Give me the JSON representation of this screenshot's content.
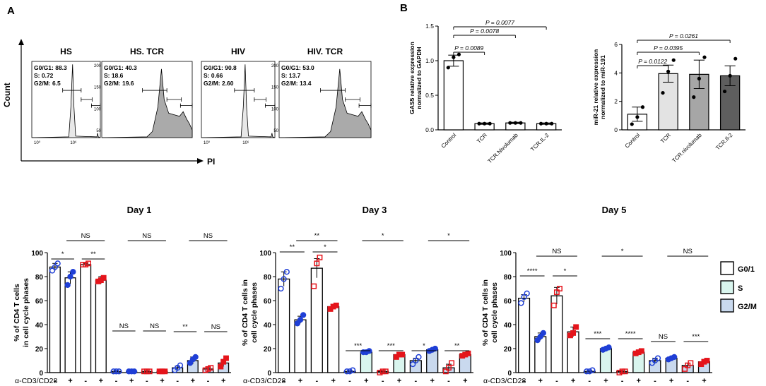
{
  "panel_labels": {
    "a": "A",
    "b": "B"
  },
  "flow": {
    "y_axis": "Count",
    "x_axis": "PI",
    "plots": [
      {
        "title": "HS",
        "stats": [
          "G0/G1: 88.3",
          "S: 0.72",
          "G2/M: 6.5"
        ],
        "tick_left": "10⁰",
        "tick_right": "10⁶",
        "shape": "narrow"
      },
      {
        "title": "HS. TCR",
        "stats": [
          "G0/G1: 40.3",
          "S: 18.6",
          "G2/M: 19.6"
        ],
        "tick_labels": [
          "200",
          "150",
          "100",
          "50"
        ],
        "shape": "broad"
      },
      {
        "title": "HIV",
        "stats": [
          "G0/G1: 90.8",
          "S: 0.66",
          "G2/M: 2.60"
        ],
        "tick_left": "10⁰",
        "tick_right": "10⁶",
        "shape": "narrow"
      },
      {
        "title": "HIV. TCR",
        "stats": [
          "G0/G1: 53.0",
          "S: 13.7",
          "G2/M: 13.4"
        ],
        "tick_labels": [
          "200",
          "150",
          "100",
          "50"
        ],
        "shape": "broad"
      }
    ]
  },
  "chart_data": [
    {
      "type": "bar",
      "id": "gas5",
      "ylabel": "GAS5 relative expression normalized to GAPDH",
      "ylabel_lines": [
        "GAS5 relative expression",
        "normalized to GAPDH"
      ],
      "ylim": [
        0,
        1.5
      ],
      "yticks": [
        "0.0",
        "0.5",
        "1.0",
        "1.5"
      ],
      "categories": [
        "Control",
        "TCR",
        "TCR.Nivolumab",
        "TCR.IL-2"
      ],
      "values": [
        1.0,
        0.09,
        0.1,
        0.09
      ],
      "errors": [
        0.08,
        0.01,
        0.01,
        0.01
      ],
      "points": [
        [
          0.9,
          1.05,
          1.09
        ],
        [
          0.09,
          0.09,
          0.09
        ],
        [
          0.1,
          0.1,
          0.1
        ],
        [
          0.09,
          0.09,
          0.09
        ]
      ],
      "fills": [
        "#ffffff",
        "#ffffff",
        "#ffffff",
        "#ffffff"
      ],
      "comparisons": [
        {
          "from": 0,
          "to": 1,
          "label": "P = 0.0089"
        },
        {
          "from": 0,
          "to": 2,
          "label": "P = 0.0078"
        },
        {
          "from": 0,
          "to": 3,
          "label": "P = 0.0077"
        }
      ]
    },
    {
      "type": "bar",
      "id": "mir21",
      "ylabel": "miR-21 relative expression normalized to miR-191",
      "ylabel_lines": [
        "miR-21 relative expression",
        "normalized to miR-191"
      ],
      "ylim": [
        0,
        6
      ],
      "yticks": [
        "0",
        "2",
        "4",
        "6"
      ],
      "categories": [
        "Control",
        "TCR",
        "TCR.nivolumab",
        "TCR.Il-2"
      ],
      "values": [
        1.1,
        3.95,
        3.9,
        3.8
      ],
      "errors": [
        0.5,
        0.6,
        1.0,
        0.7
      ],
      "points": [
        [
          0.4,
          0.9,
          1.6
        ],
        [
          2.6,
          4.1,
          4.9
        ],
        [
          2.3,
          3.6,
          5.1
        ],
        [
          2.7,
          3.8,
          5.0
        ]
      ],
      "fills": [
        "#ffffff",
        "#e3e3e3",
        "#a6a6a6",
        "#5e5e5e"
      ],
      "comparisons": [
        {
          "from": 0,
          "to": 1,
          "label": "P = 0.0122"
        },
        {
          "from": 0,
          "to": 2,
          "label": "P = 0.0395"
        },
        {
          "from": 0,
          "to": 3,
          "label": "P = 0.0261"
        }
      ]
    },
    {
      "type": "bar",
      "id": "day1",
      "title": "Day 1",
      "ylabel_lines": [
        "% of CD4 T cells",
        "in  cell cycle phases"
      ],
      "ylim": [
        0,
        100
      ],
      "yticks": [
        "0",
        "20",
        "40",
        "60",
        "80",
        "100"
      ],
      "xlabel": "α-CD3/CD28",
      "signs": [
        "-",
        "+",
        "-",
        "+",
        "-",
        "+",
        "-",
        "+",
        "-",
        "+",
        "-",
        "+"
      ],
      "phases": [
        "G0/1",
        "G0/1",
        "G0/1",
        "G0/1",
        "S",
        "S",
        "S",
        "S",
        "G2/M",
        "G2/M",
        "G2/M",
        "G2/M"
      ],
      "groups": [
        "HS",
        "HS",
        "HIV",
        "HIV",
        "HS",
        "HS",
        "HIV",
        "HIV",
        "HS",
        "HS",
        "HIV",
        "HIV"
      ],
      "values": [
        88,
        79,
        90,
        77,
        1,
        1,
        1,
        1,
        4,
        10,
        3,
        8
      ],
      "errors": [
        3,
        5,
        1,
        3,
        0.5,
        0.5,
        0.5,
        0.5,
        1.5,
        3,
        1,
        3
      ],
      "points": [
        [
          85,
          88,
          91
        ],
        [
          73,
          80,
          84
        ],
        [
          90,
          90,
          91
        ],
        [
          76,
          77,
          79
        ],
        [
          1,
          1,
          1
        ],
        [
          1,
          1,
          1
        ],
        [
          1,
          1,
          1
        ],
        [
          1,
          1,
          1
        ],
        [
          2,
          4,
          6
        ],
        [
          8,
          11,
          13
        ],
        [
          2,
          3,
          4
        ],
        [
          5,
          9,
          12
        ]
      ],
      "sig_low": [
        {
          "from": 0,
          "to": 1,
          "label": "*"
        },
        {
          "from": 2,
          "to": 3,
          "label": "**"
        },
        {
          "from": 4,
          "to": 5,
          "label": "NS"
        },
        {
          "from": 6,
          "to": 7,
          "label": "NS"
        },
        {
          "from": 8,
          "to": 9,
          "label": "**"
        },
        {
          "from": 10,
          "to": 11,
          "label": "NS"
        }
      ],
      "sig_high": [
        {
          "from": 1,
          "to": 3,
          "label": "NS"
        },
        {
          "from": 5,
          "to": 7,
          "label": "NS"
        },
        {
          "from": 9,
          "to": 11,
          "label": "NS"
        }
      ]
    },
    {
      "type": "bar",
      "id": "day3",
      "title": "Day 3",
      "ylabel_lines": [
        "% of CD4 T cells in",
        "cell cycle phases"
      ],
      "ylim": [
        0,
        100
      ],
      "yticks": [
        "0",
        "20",
        "40",
        "60",
        "80",
        "100"
      ],
      "xlabel": "α-CD3/CD28",
      "signs": [
        "-",
        "+",
        "-",
        "+",
        "-",
        "+",
        "-",
        "+",
        "-",
        "+",
        "-",
        "+"
      ],
      "phases": [
        "G0/1",
        "G0/1",
        "G0/1",
        "G0/1",
        "S",
        "S",
        "S",
        "S",
        "G2/M",
        "G2/M",
        "G2/M",
        "G2/M"
      ],
      "groups": [
        "HS",
        "HS",
        "HIV",
        "HIV",
        "HS",
        "HS",
        "HIV",
        "HIV",
        "HS",
        "HS",
        "HIV",
        "HIV"
      ],
      "values": [
        78,
        44,
        87,
        55,
        1,
        17,
        1,
        15,
        10,
        19,
        4,
        15
      ],
      "errors": [
        6,
        3,
        8,
        2,
        0.5,
        1,
        0.5,
        2,
        2,
        1,
        3,
        2
      ],
      "points": [
        [
          70,
          78,
          84
        ],
        [
          41,
          44,
          48
        ],
        [
          72,
          91,
          96
        ],
        [
          53,
          55,
          56
        ],
        [
          1,
          1,
          2
        ],
        [
          17,
          17,
          18
        ],
        [
          0,
          1,
          1
        ],
        [
          13,
          15,
          15
        ],
        [
          7,
          10,
          13
        ],
        [
          18,
          19,
          20
        ],
        [
          1,
          4,
          8
        ],
        [
          14,
          15,
          16
        ]
      ],
      "sig_low": [
        {
          "from": 0,
          "to": 1,
          "label": "**"
        },
        {
          "from": 2,
          "to": 3,
          "label": "*"
        },
        {
          "from": 4,
          "to": 5,
          "label": "***"
        },
        {
          "from": 6,
          "to": 7,
          "label": "***"
        },
        {
          "from": 8,
          "to": 9,
          "label": "*"
        },
        {
          "from": 10,
          "to": 11,
          "label": "**"
        }
      ],
      "sig_high": [
        {
          "from": 1,
          "to": 3,
          "label": "**"
        },
        {
          "from": 5,
          "to": 7,
          "label": "*"
        },
        {
          "from": 9,
          "to": 11,
          "label": "*"
        }
      ]
    },
    {
      "type": "bar",
      "id": "day5",
      "title": "Day 5",
      "ylabel_lines": [
        "% of CD4 T cells in",
        "cell cycle phases"
      ],
      "ylim": [
        0,
        100
      ],
      "yticks": [
        "0",
        "20",
        "40",
        "60",
        "80",
        "100"
      ],
      "xlabel": "α-CD3/CD28",
      "signs": [
        "-",
        "+",
        "-",
        "+",
        "-",
        "+",
        "-",
        "+",
        "-",
        "+",
        "-",
        "+"
      ],
      "phases": [
        "G0/1",
        "G0/1",
        "G0/1",
        "G0/1",
        "S",
        "S",
        "S",
        "S",
        "G2/M",
        "G2/M",
        "G2/M",
        "G2/M"
      ],
      "groups": [
        "HS",
        "HS",
        "HIV",
        "HIV",
        "HS",
        "HS",
        "HIV",
        "HIV",
        "HS",
        "HS",
        "HIV",
        "HIV"
      ],
      "values": [
        62,
        30,
        64,
        34,
        1,
        20,
        1,
        17,
        10,
        12,
        6,
        9
      ],
      "errors": [
        3,
        3,
        7,
        4,
        0.5,
        1,
        0.5,
        1,
        2,
        1,
        2,
        2
      ],
      "points": [
        [
          58,
          63,
          66
        ],
        [
          27,
          30,
          33
        ],
        [
          56,
          67,
          70
        ],
        [
          31,
          33,
          38
        ],
        [
          1,
          1,
          2
        ],
        [
          19,
          20,
          21
        ],
        [
          0,
          1,
          1
        ],
        [
          16,
          17,
          18
        ],
        [
          8,
          10,
          12
        ],
        [
          11,
          12,
          13
        ],
        [
          3,
          6,
          8
        ],
        [
          7,
          9,
          10
        ]
      ],
      "sig_low": [
        {
          "from": 0,
          "to": 1,
          "label": "****"
        },
        {
          "from": 2,
          "to": 3,
          "label": "*"
        },
        {
          "from": 4,
          "to": 5,
          "label": "***"
        },
        {
          "from": 6,
          "to": 7,
          "label": "****"
        },
        {
          "from": 8,
          "to": 9,
          "label": "NS"
        },
        {
          "from": 10,
          "to": 11,
          "label": "***"
        }
      ],
      "sig_high": [
        {
          "from": 1,
          "to": 3,
          "label": "NS"
        },
        {
          "from": 5,
          "to": 7,
          "label": "*"
        },
        {
          "from": 9,
          "to": 11,
          "label": "NS"
        }
      ]
    }
  ],
  "legend": [
    {
      "label": "G0/1",
      "color": "#ffffff"
    },
    {
      "label": "S",
      "color": "#d9f5ee"
    },
    {
      "label": "G2/M",
      "color": "#c9d9ee"
    }
  ],
  "colors": {
    "HS": "#1f3fd6",
    "HIV": "#e5141b",
    "hist_fill": "#aaaaaa"
  }
}
